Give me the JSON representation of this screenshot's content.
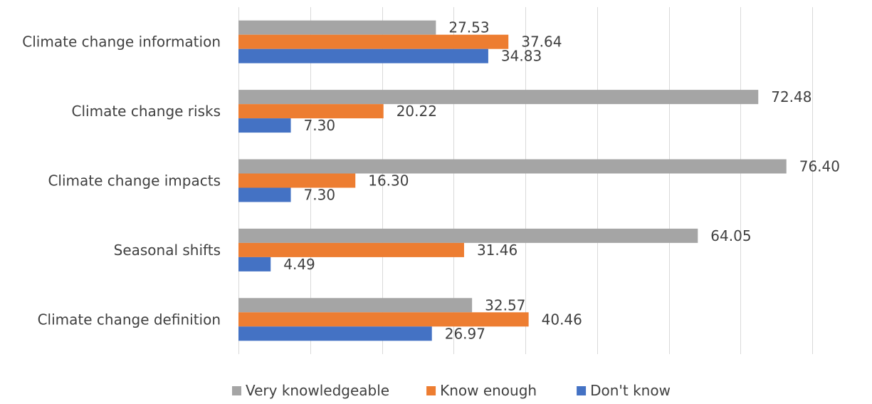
{
  "chart_data": {
    "type": "bar",
    "orientation": "horizontal",
    "categories": [
      "Climate change information",
      "Climate change risks",
      "Climate change impacts",
      "Seasonal shifts",
      "Climate change definition"
    ],
    "series": [
      {
        "name": "Very knowledgeable",
        "color": "#a5a5a5",
        "values": [
          27.53,
          72.48,
          76.4,
          64.05,
          32.57
        ]
      },
      {
        "name": "Know enough",
        "color": "#ed7d31",
        "values": [
          37.64,
          20.22,
          16.3,
          31.46,
          40.46
        ]
      },
      {
        "name": "Don't know",
        "color": "#4472c4",
        "values": [
          34.83,
          7.3,
          7.3,
          4.49,
          26.97
        ]
      }
    ],
    "value_labels": [
      [
        "27.53",
        "72.48",
        "76.40",
        "64.05",
        "32.57"
      ],
      [
        "37.64",
        "20.22",
        "16.30",
        "31.46",
        "40.46"
      ],
      [
        "34.83",
        "7.30",
        "7.30",
        "4.49",
        "26.97"
      ]
    ],
    "xlim": [
      0,
      80
    ],
    "grid": true,
    "legend_position": "bottom",
    "title": "",
    "xlabel": "",
    "ylabel": ""
  }
}
